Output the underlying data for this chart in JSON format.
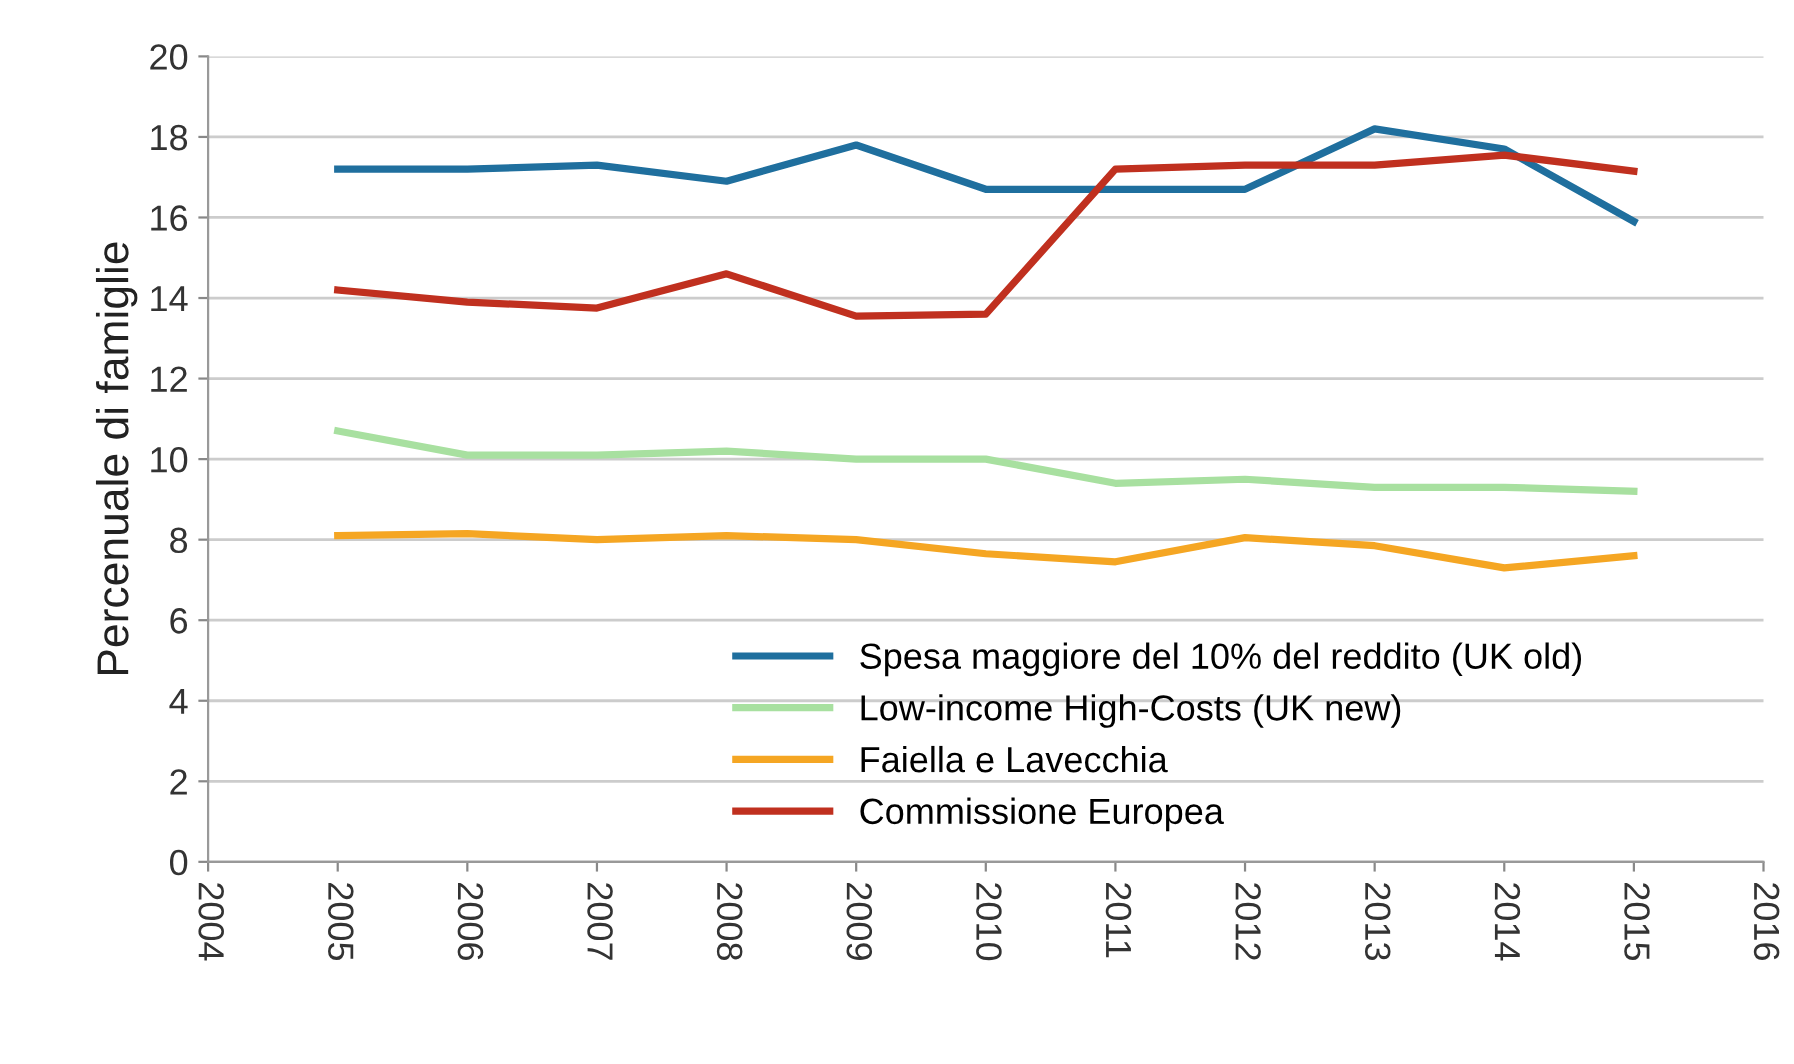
{
  "chart_data": {
    "type": "line",
    "ylabel": "Percenuale di famiglie",
    "x": [
      2005,
      2006,
      2007,
      2008,
      2009,
      2010,
      2011,
      2012,
      2013,
      2014,
      2015
    ],
    "series": [
      {
        "name": "Spesa maggiore del 10% del reddito (UK old)",
        "color": "#1f6f9e",
        "values": [
          17.2,
          17.2,
          17.3,
          16.9,
          17.8,
          16.7,
          16.7,
          16.7,
          18.2,
          17.7,
          15.9
        ]
      },
      {
        "name": "Low-income High-Costs (UK new)",
        "color": "#a8e0a0",
        "values": [
          10.7,
          10.1,
          10.1,
          10.2,
          10.0,
          10.0,
          9.4,
          9.5,
          9.3,
          9.3,
          9.2
        ]
      },
      {
        "name": "Faiella e Lavecchia",
        "color": "#f5a623",
        "values": [
          8.1,
          8.15,
          8.0,
          8.1,
          8.0,
          7.65,
          7.45,
          8.05,
          7.85,
          7.3,
          7.6
        ]
      },
      {
        "name": "Commissione Europea",
        "color": "#c0301f",
        "values": [
          14.2,
          13.9,
          13.75,
          14.6,
          13.55,
          13.6,
          17.2,
          17.3,
          17.3,
          17.55,
          17.15
        ]
      }
    ],
    "xlim": [
      2004,
      2016
    ],
    "xticks": [
      2004,
      2005,
      2006,
      2007,
      2008,
      2009,
      2010,
      2011,
      2012,
      2013,
      2014,
      2015,
      2016
    ],
    "ylim": [
      0,
      20
    ],
    "yticks": [
      0,
      2,
      4,
      6,
      8,
      10,
      12,
      14,
      16,
      18,
      20
    ],
    "grid": "y",
    "legend": "bottom",
    "marker": "none",
    "line_style": "solid"
  }
}
